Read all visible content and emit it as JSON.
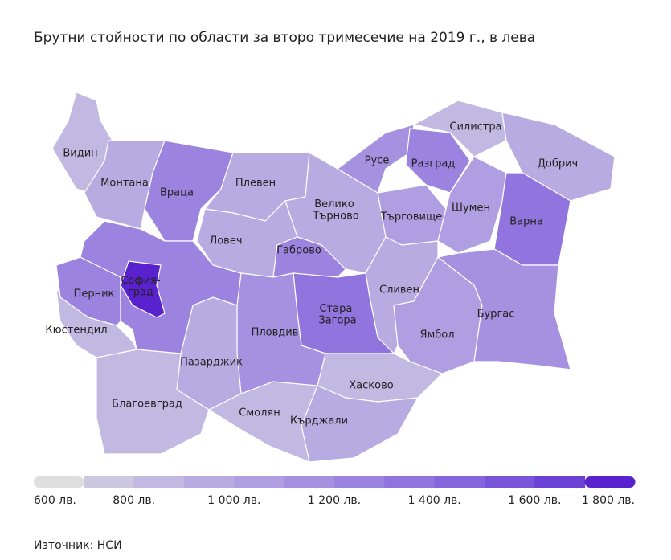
{
  "chart_data": {
    "type": "choropleth",
    "title": "Брутни стойности по области за второ тримесечие на 2019 г., в лева",
    "categories": [
      "Видин",
      "Монтана",
      "Враца",
      "Плевен",
      "Ловеч",
      "Велико Търново",
      "Габрово",
      "Русе",
      "Разград",
      "Силистра",
      "Добрич",
      "Търговище",
      "Шумен",
      "Варна",
      "Сливен",
      "Ямбол",
      "Бургас",
      "Стара Загора",
      "Хасково",
      "Кърджали",
      "Смолян",
      "Пловдив",
      "Пазарджик",
      "Благоевград",
      "Кюстендил",
      "Перник",
      null,
      "София-град"
    ],
    "values": [
      800,
      900,
      1250,
      950,
      950,
      950,
      1200,
      1150,
      1200,
      850,
      950,
      1000,
      1000,
      1300,
      950,
      1000,
      1100,
      1350,
      850,
      900,
      850,
      1150,
      950,
      850,
      850,
      1200,
      1250,
      1800
    ],
    "legend_colors": [
      "#dedede",
      "#cbc8df",
      "#c1b9e2",
      "#b8abe2",
      "#af9ee2",
      "#a691e1",
      "#9c83df",
      "#9174dd",
      "#8565db",
      "#7855d8",
      "#6a41d4",
      "#5a22cf"
    ],
    "xlim": [
      600,
      1800
    ],
    "xticks": [
      {
        "value": 600,
        "label": "600 лв."
      },
      {
        "value": 800,
        "label": "800 лв."
      },
      {
        "value": 1000,
        "label": "1 000 лв."
      },
      {
        "value": 1200,
        "label": "1 200 лв."
      },
      {
        "value": 1400,
        "label": "1 400 лв."
      },
      {
        "value": 1600,
        "label": "1 600 лв."
      },
      {
        "value": 1800,
        "label": "1 800 лв."
      }
    ],
    "source": "Източник: НСИ"
  }
}
